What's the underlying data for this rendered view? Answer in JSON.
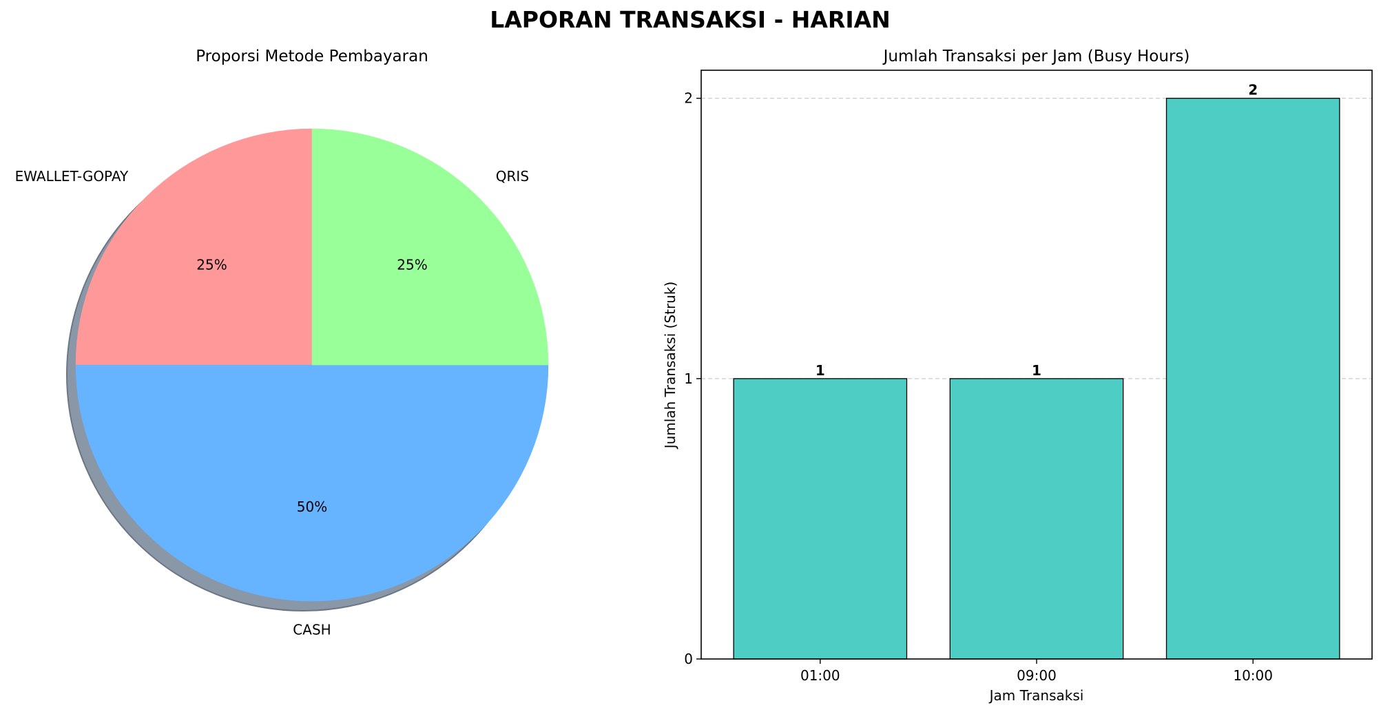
{
  "figure": {
    "title": "LAPORAN TRANSAKSI - HARIAN"
  },
  "chart_data": [
    {
      "type": "pie",
      "title": "Proporsi Metode Pembayaran",
      "shadow": true,
      "start_angle_deg": 90,
      "direction": "counterclockwise",
      "slices": [
        {
          "label": "EWALLET-GOPAY",
          "value": 25,
          "pct_label": "25%",
          "color": "#ff9999"
        },
        {
          "label": "CASH",
          "value": 50,
          "pct_label": "50%",
          "color": "#66b3ff"
        },
        {
          "label": "QRIS",
          "value": 25,
          "pct_label": "25%",
          "color": "#99ff99"
        }
      ]
    },
    {
      "type": "bar",
      "title": "Jumlah Transaksi per Jam (Busy Hours)",
      "xlabel": "Jam Transaksi",
      "ylabel": "Jumlah Transaksi (Struk)",
      "categories": [
        "01:00",
        "09:00",
        "10:00"
      ],
      "values": [
        1,
        1,
        2
      ],
      "value_labels": [
        "1",
        "1",
        "2"
      ],
      "ylim": [
        0,
        2.1
      ],
      "yticks": [
        0,
        1,
        2
      ],
      "ytick_labels": [
        "0",
        "1",
        "2"
      ],
      "grid": "y-dashed",
      "bar_color": "#4ecdc4",
      "edge_color": "#000000"
    }
  ]
}
